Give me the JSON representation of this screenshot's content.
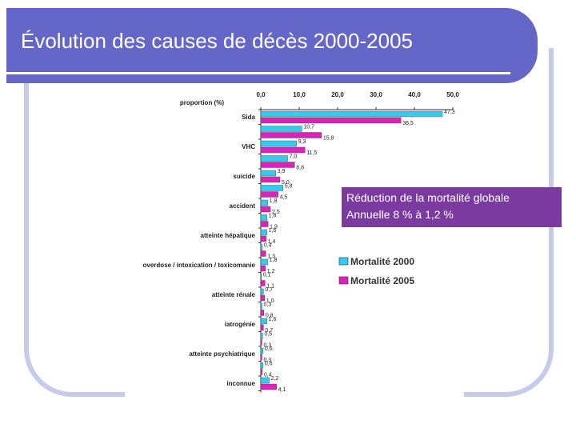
{
  "slide": {
    "title": "Évolution des causes de décès 2000-2005",
    "callout_line1": "Réduction de la mortalité globale",
    "callout_line2": "Annuelle 8 % à 1,2 %"
  },
  "colors": {
    "header": "#6467c8",
    "frame": "#c7cbe9",
    "series_2000": "#33ccee",
    "series_2005": "#dd22bb",
    "callout": "#7a3aa0"
  },
  "chart_data": {
    "type": "bar",
    "orientation": "horizontal",
    "axis_label": "proportion (%)",
    "xlim": [
      0,
      50
    ],
    "ticks": [
      "0,0",
      "10,0",
      "20,0",
      "30,0",
      "40,0",
      "50,0"
    ],
    "tick_values": [
      0,
      10,
      20,
      30,
      40,
      50
    ],
    "categories": [
      "Sida",
      "",
      "VHC",
      "",
      "suicide",
      "",
      "accident",
      "",
      "atteinte hépatique",
      "",
      "overdose / intoxication / toxicomanie",
      "",
      "atteinte rénale",
      "",
      "iatrogénie",
      "",
      "atteinte psychiatrique",
      "",
      "inconnue"
    ],
    "series": [
      {
        "name": "Mortalité 2000",
        "values": [
          47.3,
          10.7,
          9.3,
          7.0,
          3.9,
          5.8,
          1.8,
          1.6,
          1.6,
          0.4,
          1.8,
          0.1,
          0.7,
          0.3,
          1.6,
          0.5,
          0.6,
          0.6,
          2.2
        ],
        "labels": [
          "47,3",
          "10,7",
          "9,3",
          "7,0",
          "3,9",
          "5,8",
          "1,8",
          "1,6",
          "1,6",
          "0,4",
          "1,8",
          "0,1",
          "0,7",
          "0,3",
          "1,6",
          "0,5",
          "0,6",
          "0,6",
          "2,2"
        ]
      },
      {
        "name": "Mortalité 2005",
        "values": [
          36.5,
          15.8,
          11.5,
          8.8,
          5.0,
          4.5,
          2.5,
          1.9,
          1.4,
          1.3,
          1.2,
          1.1,
          1.0,
          0.8,
          0.7,
          0.3,
          0.3,
          0.4,
          4.1
        ],
        "labels": [
          "36,5",
          "15,8",
          "11,5",
          "8,8",
          "5,0",
          "4,5",
          "2,5",
          "1,9",
          "1,4",
          "1,3",
          "1,2",
          "1,1",
          "1,0",
          "0,8",
          "0,7",
          "0,3",
          "0,3",
          "0,4",
          "4,1"
        ]
      }
    ],
    "legend_position": "right",
    "grid": false
  }
}
